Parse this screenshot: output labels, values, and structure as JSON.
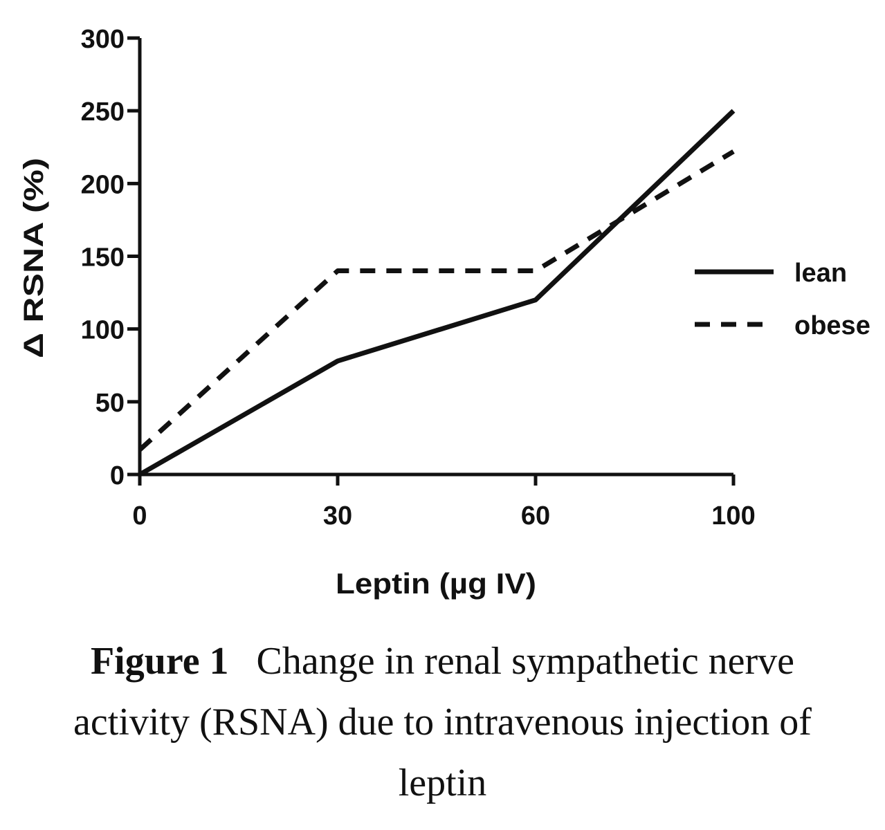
{
  "chart_data": {
    "type": "line",
    "x": [
      0,
      30,
      60,
      100
    ],
    "xlabel": "Leptin (µg IV)",
    "ylabel": "Δ RSNA (%)",
    "ylim": [
      0,
      300
    ],
    "x_ticks": [
      "0",
      "30",
      "60",
      "100"
    ],
    "y_ticks": [
      "0",
      "50",
      "100",
      "150",
      "200",
      "250",
      "300"
    ],
    "series": [
      {
        "name": "lean",
        "style": "solid",
        "values": [
          0,
          78,
          120,
          250
        ]
      },
      {
        "name": "obese",
        "style": "dashed",
        "values": [
          17,
          140,
          140,
          222
        ]
      }
    ],
    "legend_position": "right",
    "grid": false,
    "line_color": "#111111"
  },
  "caption": {
    "label": "Figure 1",
    "text": "Change in renal sympathetic nerve activity (RSNA) due to intravenous injection of leptin"
  }
}
